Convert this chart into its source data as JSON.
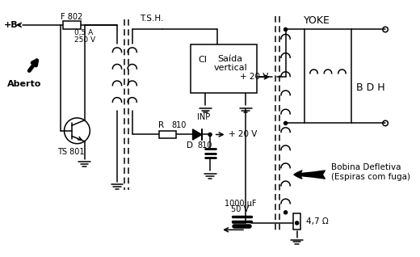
{
  "bg_color": "#ffffff",
  "line_color": "#000000",
  "fig_width": 5.2,
  "fig_height": 3.18,
  "dpi": 100,
  "labels": {
    "F802": "F 802",
    "fuse_sub1": "0,5 A",
    "fuse_sub2": "250 V",
    "aberto": "Aberto",
    "plus_b": "+B",
    "tsh": "T.S.H.",
    "ts801": "TS 801",
    "CI": "CI",
    "saida_vertical": "Saída\nvertical",
    "INP": "INP",
    "plus20v_1": "+ 20 V",
    "R810": "R",
    "R810b": "810",
    "D810": "D",
    "D810b": "810",
    "plus20v_2": "+ 20 V",
    "yoke": "YOKE",
    "BDH": "B D H",
    "bobina": "Bobina Defletiva\n(Espiras com fuga)",
    "cap1000": "1000 μF",
    "cap50v": "50 V",
    "R47": "4,7 Ω"
  }
}
